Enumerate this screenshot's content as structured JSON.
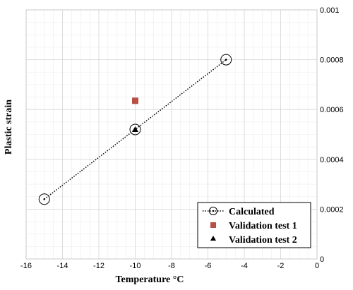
{
  "chart_data": {
    "type": "scatter",
    "xlabel": "Temperature °C",
    "ylabel": "Plastic strain",
    "xlim": [
      -16,
      0
    ],
    "ylim": [
      0,
      0.001
    ],
    "x_ticks": [
      "-16",
      "-14",
      "-12",
      "-10",
      "-8",
      "-6",
      "-4",
      "-2",
      "0"
    ],
    "y_ticks": [
      "0",
      "0.0002",
      "0.0004",
      "0.0006",
      "0.0008",
      "0.001"
    ],
    "y_axis_side": "right",
    "grid": true,
    "legend_position": "bottom-right",
    "series": [
      {
        "name": "Calculated",
        "marker": "open-circle",
        "line": "dotted",
        "color": "#000000",
        "points": [
          {
            "x": -15,
            "y": 0.00024
          },
          {
            "x": -10,
            "y": 0.00052
          },
          {
            "x": -5,
            "y": 0.0008
          }
        ]
      },
      {
        "name": "Validation test 1",
        "marker": "square",
        "line": "none",
        "color": "#b84f45",
        "points": [
          {
            "x": -10,
            "y": 0.000635
          }
        ]
      },
      {
        "name": "Validation test 2",
        "marker": "triangle",
        "line": "none",
        "color": "#000000",
        "points": [
          {
            "x": -10,
            "y": 0.00052
          }
        ]
      }
    ]
  }
}
